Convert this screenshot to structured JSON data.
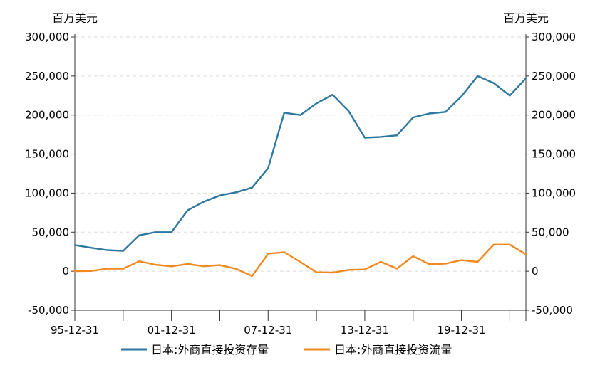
{
  "chart_data": {
    "type": "line",
    "title": "",
    "y_unit_left": "百万美元",
    "y_unit_right": "百万美元",
    "ylim": [
      -50000,
      300000
    ],
    "y_ticks": [
      -50000,
      0,
      50000,
      100000,
      150000,
      200000,
      250000,
      300000
    ],
    "y_tick_labels": [
      "-50,000",
      "0",
      "50,000",
      "100,000",
      "150,000",
      "200,000",
      "250,000",
      "300,000"
    ],
    "x_tick_labels": [
      "95-12-31",
      "01-12-31",
      "07-12-31",
      "13-12-31",
      "19-12-31"
    ],
    "x_tick_label_years": [
      1995,
      2001,
      2007,
      2013,
      2019
    ],
    "x_years": [
      1995,
      1996,
      1997,
      1998,
      1999,
      2000,
      2001,
      2002,
      2003,
      2004,
      2005,
      2006,
      2007,
      2008,
      2009,
      2010,
      2011,
      2012,
      2013,
      2014,
      2015,
      2016,
      2017,
      2018,
      2019,
      2020,
      2021,
      2022,
      2023
    ],
    "grid": true,
    "legend_position": "bottom",
    "series": [
      {
        "name": "日本:外商直接投资存量",
        "color": "#2e77a0",
        "values": [
          33500,
          30000,
          27000,
          26000,
          46000,
          50000,
          50000,
          78000,
          89000,
          97000,
          101000,
          107000,
          132000,
          203000,
          200000,
          215000,
          226000,
          205000,
          171000,
          172000,
          174000,
          197000,
          202000,
          204000,
          224000,
          250000,
          241000,
          225000,
          247000
        ]
      },
      {
        "name": "日本:外商直接投资流量",
        "color": "#f0891f",
        "values": [
          0,
          300,
          3200,
          3200,
          12700,
          8300,
          6200,
          9200,
          6300,
          7800,
          3100,
          -6200,
          22500,
          24400,
          11900,
          -1300,
          -1800,
          1700,
          2300,
          12000,
          3300,
          19200,
          9000,
          9700,
          14200,
          12000,
          34000,
          34000,
          21600
        ]
      }
    ]
  }
}
